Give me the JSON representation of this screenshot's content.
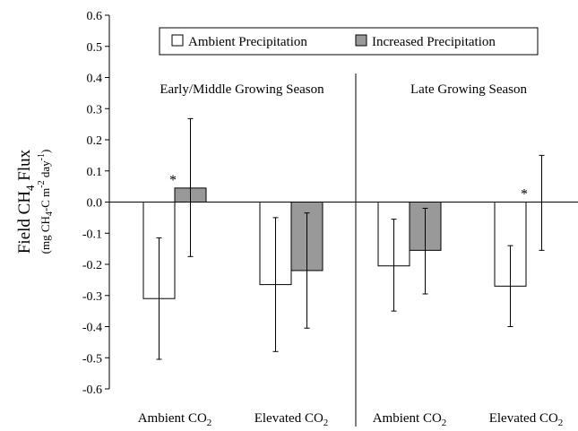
{
  "chart_data": {
    "type": "bar",
    "ylabel": "Field CH4 Flux",
    "ylabel_units": "(mg CH4-C  m-2 day-1)",
    "ylabel_parts": {
      "main_prefix": "Field CH",
      "main_sub": "4",
      "main_suffix": " Flux",
      "units_open": "(mg CH",
      "units_sub": "4",
      "units_mid": "-C  m",
      "units_sup1": "-2",
      "units_mid2": " day",
      "units_sup2": "-1",
      "units_close": ")"
    },
    "ylim": [
      -0.6,
      0.6
    ],
    "yticks": [
      {
        "value": 0.6,
        "label": "0.6"
      },
      {
        "value": 0.5,
        "label": "0.5"
      },
      {
        "value": 0.4,
        "label": "0.4"
      },
      {
        "value": 0.3,
        "label": "0.3"
      },
      {
        "value": 0.2,
        "label": "0.2"
      },
      {
        "value": 0.1,
        "label": "0.1"
      },
      {
        "value": 0.0,
        "label": "0.0"
      },
      {
        "value": -0.1,
        "label": "-0.1"
      },
      {
        "value": -0.2,
        "label": "-0.2"
      },
      {
        "value": -0.3,
        "label": "-0.3"
      },
      {
        "value": -0.4,
        "label": "-0.4"
      },
      {
        "value": -0.5,
        "label": "-0.5"
      },
      {
        "value": -0.6,
        "label": "-0.6"
      }
    ],
    "grid": false,
    "legend_position": "top-center",
    "panels": [
      {
        "label": "Early/Middle Growing Season"
      },
      {
        "label": "Late Growing Season"
      }
    ],
    "categories": [
      {
        "prefix": "Ambient CO",
        "sub": "2",
        "panel": 0
      },
      {
        "prefix": "Elevated CO",
        "sub": "2",
        "panel": 0
      },
      {
        "prefix": "Ambient CO",
        "sub": "2",
        "panel": 1
      },
      {
        "prefix": "Elevated CO",
        "sub": "2",
        "panel": 1
      }
    ],
    "series": [
      {
        "name": "Ambient Precipitation",
        "color": "#ffffff",
        "values": [
          -0.31,
          -0.265,
          -0.205,
          -0.27
        ],
        "err_high": [
          -0.115,
          -0.05,
          -0.055,
          -0.14
        ],
        "err_low": [
          -0.505,
          -0.48,
          -0.35,
          -0.4
        ],
        "sig": [
          "",
          "",
          "",
          ""
        ]
      },
      {
        "name": "Increased Precipitation",
        "color": "#999999",
        "values": [
          0.045,
          -0.22,
          -0.155,
          0.0
        ],
        "err_high": [
          0.268,
          -0.035,
          -0.02,
          0.15
        ],
        "err_low": [
          -0.175,
          -0.405,
          -0.295,
          -0.155
        ],
        "sig": [
          "*",
          "",
          "",
          "*"
        ]
      }
    ]
  }
}
